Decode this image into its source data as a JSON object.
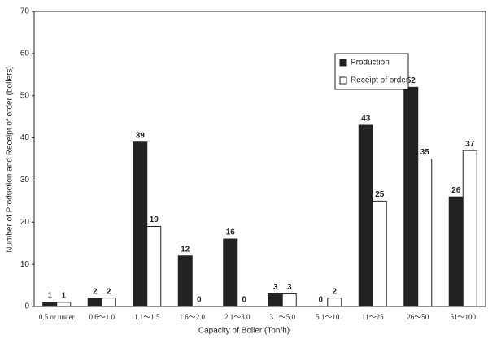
{
  "chart_data": {
    "type": "bar",
    "x_label": "Capacity of Boiler (Ton/h)",
    "y_label": "Number of Production and Receipt of order (boilers)",
    "categories": [
      "0.5 or under",
      "0.6～1.0",
      "1.1～1.5",
      "1.6～2.0",
      "2.1～3.0",
      "3.1～5.0",
      "5.1～10",
      "11～25",
      "26～50",
      "51～100"
    ],
    "series": [
      {
        "name": "Production",
        "color": "#222222",
        "values": [
          1,
          2,
          39,
          12,
          16,
          3,
          0,
          43,
          52,
          26
        ]
      },
      {
        "name": "Receipt of order",
        "color": "#ffffff",
        "values": [
          1,
          2,
          19,
          0,
          0,
          3,
          2,
          25,
          35,
          37
        ]
      }
    ],
    "ylim": [
      0,
      70
    ],
    "yticks": [
      0,
      10,
      20,
      30,
      40,
      50,
      60,
      70
    ],
    "grid": false,
    "legend": "upper right"
  }
}
